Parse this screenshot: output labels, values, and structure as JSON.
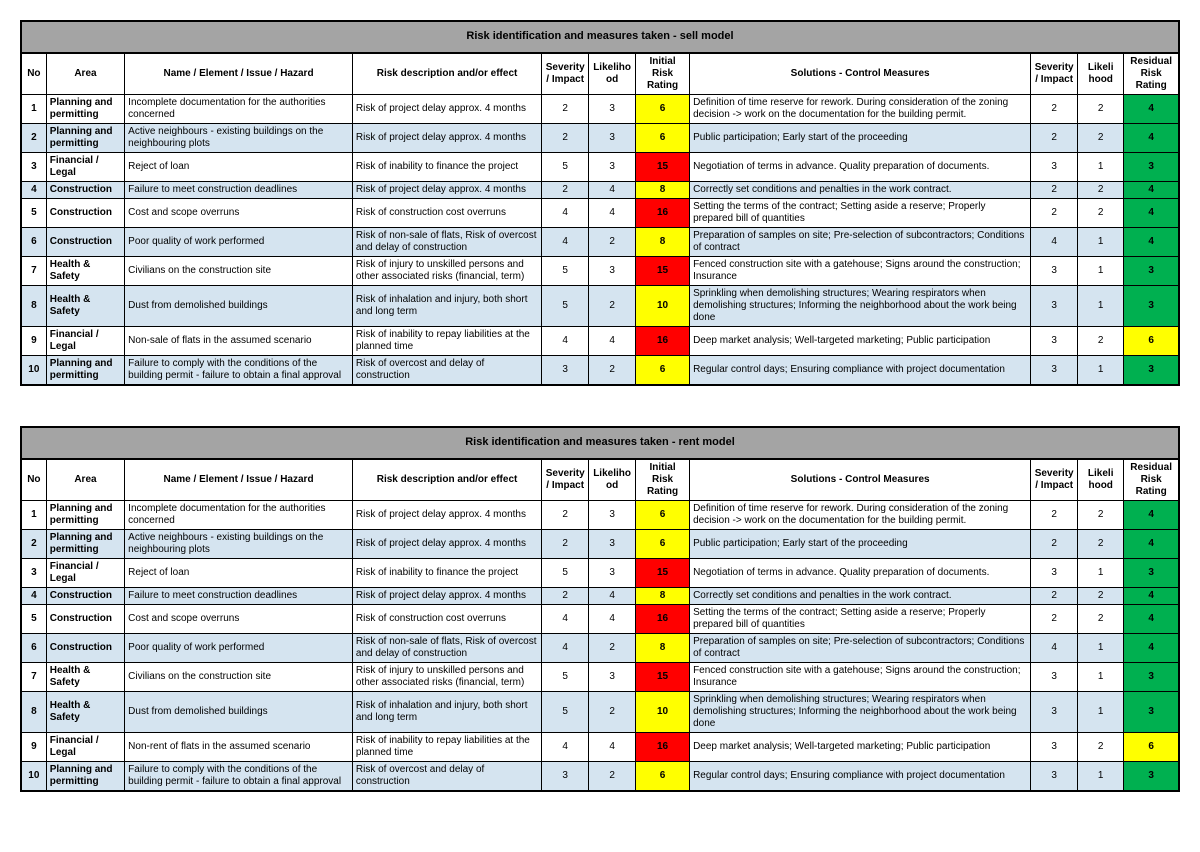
{
  "colors": {
    "header_bg": "#a4a4a4",
    "row_shade": "#d5e4f0",
    "rating_red": "#ff0000",
    "rating_yellow": "#ffff00",
    "rating_green": "#00b050",
    "border": "#000000"
  },
  "columns": [
    "No",
    "Area",
    "Name / Element / Issue / Hazard",
    "Risk\ndescription and/or effect",
    "Severity / Impact",
    "Likeliho od",
    "Initial Risk Rating",
    "Solutions - Control Measures",
    "Severity / Impact",
    "Likeli hood",
    "Residual Risk Rating"
  ],
  "tables": [
    {
      "title": "Risk identification and measures taken - sell model",
      "rows": [
        {
          "no": "1",
          "shaded": false,
          "area": "Planning and permitting",
          "name": "Incomplete documentation for the authorities concerned",
          "desc": "Risk of project delay approx. 4 months",
          "sev1": "2",
          "lik1": "3",
          "irr": "6",
          "irr_color": "yellow",
          "sol": "Definition of time reserve for rework. During consideration of the zoning decision -> work on the documentation for the building permit.",
          "sev2": "2",
          "lik2": "2",
          "rrr": "4",
          "rrr_color": "green"
        },
        {
          "no": "2",
          "shaded": true,
          "area": "Planning and permitting",
          "name": "Active neighbours - existing buildings on the neighbouring plots",
          "desc": "Risk of project delay approx. 4 months",
          "sev1": "2",
          "lik1": "3",
          "irr": "6",
          "irr_color": "yellow",
          "sol": "Public participation; Early start of the proceeding",
          "sev2": "2",
          "lik2": "2",
          "rrr": "4",
          "rrr_color": "green"
        },
        {
          "no": "3",
          "shaded": false,
          "area": "Financial / Legal",
          "name": "Reject of loan",
          "desc": "Risk of  inability to finance the project",
          "sev1": "5",
          "lik1": "3",
          "irr": "15",
          "irr_color": "red",
          "sol": "Negotiation of terms in advance. Quality preparation of documents.",
          "sev2": "3",
          "lik2": "1",
          "rrr": "3",
          "rrr_color": "green"
        },
        {
          "no": "4",
          "shaded": true,
          "area": "Construction",
          "name": "Failure to meet construction deadlines",
          "desc": "Risk of project delay approx. 4 months",
          "sev1": "2",
          "lik1": "4",
          "irr": "8",
          "irr_color": "yellow",
          "sol": "Correctly set conditions and penalties in the work contract.",
          "sev2": "2",
          "lik2": "2",
          "rrr": "4",
          "rrr_color": "green"
        },
        {
          "no": "5",
          "shaded": false,
          "area": "Construction",
          "name": "Cost and scope overruns",
          "desc": "Risk of construction cost overruns",
          "sev1": "4",
          "lik1": "4",
          "irr": "16",
          "irr_color": "red",
          "sol": "Setting the terms of the contract; Setting aside a reserve; Properly prepared bill of quantities",
          "sev2": "2",
          "lik2": "2",
          "rrr": "4",
          "rrr_color": "green"
        },
        {
          "no": "6",
          "shaded": true,
          "area": "Construction",
          "name": "Poor quality of work performed",
          "desc": "Risk of non-sale of flats, Risk of overcost and delay of construction",
          "sev1": "4",
          "lik1": "2",
          "irr": "8",
          "irr_color": "yellow",
          "sol": "Preparation of samples on site; Pre-selection of subcontractors; Conditions of contract",
          "sev2": "4",
          "lik2": "1",
          "rrr": "4",
          "rrr_color": "green"
        },
        {
          "no": "7",
          "shaded": false,
          "area": "Health & Safety",
          "name": "Civilians on the construction site",
          "desc": "Risk of injury to unskilled persons and other associated risks (financial, term)",
          "sev1": "5",
          "lik1": "3",
          "irr": "15",
          "irr_color": "red",
          "sol": "Fenced construction site with a gatehouse; Signs around the construction; Insurance",
          "sev2": "3",
          "lik2": "1",
          "rrr": "3",
          "rrr_color": "green"
        },
        {
          "no": "8",
          "shaded": true,
          "area": "Health & Safety",
          "name": "Dust from demolished buildings",
          "desc": "Risk of inhalation and injury, both short and long term",
          "sev1": "5",
          "lik1": "2",
          "irr": "10",
          "irr_color": "yellow",
          "sol": "Sprinkling when demolishing structures; Wearing respirators when demolishing structures; Informing the neighborhood about the work being done",
          "sev2": "3",
          "lik2": "1",
          "rrr": "3",
          "rrr_color": "green"
        },
        {
          "no": "9",
          "shaded": false,
          "area": "Financial / Legal",
          "name": "Non-sale of flats in the assumed scenario",
          "desc": "Risk of inability to repay liabilities at the planned time",
          "sev1": "4",
          "lik1": "4",
          "irr": "16",
          "irr_color": "red",
          "sol": "Deep market analysis; Well-targeted marketing; Public participation",
          "sev2": "3",
          "lik2": "2",
          "rrr": "6",
          "rrr_color": "yellow"
        },
        {
          "no": "10",
          "shaded": true,
          "area": "Planning and permitting",
          "name": "Failure to comply with the conditions of the building permit - failure to obtain a final approval",
          "desc": "Risk of overcost and delay of construction",
          "sev1": "3",
          "lik1": "2",
          "irr": "6",
          "irr_color": "yellow",
          "sol": "Regular control days; Ensuring compliance with project documentation",
          "sev2": "3",
          "lik2": "1",
          "rrr": "3",
          "rrr_color": "green"
        }
      ]
    },
    {
      "title": "Risk identification and measures taken - rent model",
      "rows": [
        {
          "no": "1",
          "shaded": false,
          "area": "Planning and permitting",
          "name": "Incomplete documentation for the authorities concerned",
          "desc": "Risk of project delay approx. 4 months",
          "sev1": "2",
          "lik1": "3",
          "irr": "6",
          "irr_color": "yellow",
          "sol": "Definition of time reserve for rework. During consideration of the zoning decision -> work on the documentation for the building permit.",
          "sev2": "2",
          "lik2": "2",
          "rrr": "4",
          "rrr_color": "green"
        },
        {
          "no": "2",
          "shaded": true,
          "area": "Planning and permitting",
          "name": "Active neighbours - existing buildings on the neighbouring plots",
          "desc": "Risk of project delay approx. 4 months",
          "sev1": "2",
          "lik1": "3",
          "irr": "6",
          "irr_color": "yellow",
          "sol": "Public participation; Early start of the proceeding",
          "sev2": "2",
          "lik2": "2",
          "rrr": "4",
          "rrr_color": "green"
        },
        {
          "no": "3",
          "shaded": false,
          "area": "Financial / Legal",
          "name": "Reject of loan",
          "desc": "Risk of  inability to finance the project",
          "sev1": "5",
          "lik1": "3",
          "irr": "15",
          "irr_color": "red",
          "sol": "Negotiation of terms in advance. Quality preparation of documents.",
          "sev2": "3",
          "lik2": "1",
          "rrr": "3",
          "rrr_color": "green"
        },
        {
          "no": "4",
          "shaded": true,
          "area": "Construction",
          "name": "Failure to meet construction deadlines",
          "desc": "Risk of project delay approx. 4 months",
          "sev1": "2",
          "lik1": "4",
          "irr": "8",
          "irr_color": "yellow",
          "sol": "Correctly set conditions and penalties in the work contract.",
          "sev2": "2",
          "lik2": "2",
          "rrr": "4",
          "rrr_color": "green"
        },
        {
          "no": "5",
          "shaded": false,
          "area": "Construction",
          "name": "Cost and scope overruns",
          "desc": "Risk of construction cost overruns",
          "sev1": "4",
          "lik1": "4",
          "irr": "16",
          "irr_color": "red",
          "sol": "Setting the terms of the contract; Setting aside a reserve; Properly prepared bill of quantities",
          "sev2": "2",
          "lik2": "2",
          "rrr": "4",
          "rrr_color": "green"
        },
        {
          "no": "6",
          "shaded": true,
          "area": "Construction",
          "name": "Poor quality of work performed",
          "desc": "Risk of non-sale of flats, Risk of overcost and delay of construction",
          "sev1": "4",
          "lik1": "2",
          "irr": "8",
          "irr_color": "yellow",
          "sol": "Preparation of samples on site; Pre-selection of subcontractors; Conditions of contract",
          "sev2": "4",
          "lik2": "1",
          "rrr": "4",
          "rrr_color": "green"
        },
        {
          "no": "7",
          "shaded": false,
          "area": "Health & Safety",
          "name": "Civilians on the construction site",
          "desc": "Risk of injury to unskilled persons and other associated risks (financial, term)",
          "sev1": "5",
          "lik1": "3",
          "irr": "15",
          "irr_color": "red",
          "sol": "Fenced construction site with a gatehouse; Signs around the construction; Insurance",
          "sev2": "3",
          "lik2": "1",
          "rrr": "3",
          "rrr_color": "green"
        },
        {
          "no": "8",
          "shaded": true,
          "area": "Health & Safety",
          "name": "Dust from demolished buildings",
          "desc": "Risk of inhalation and injury, both short and long term",
          "sev1": "5",
          "lik1": "2",
          "irr": "10",
          "irr_color": "yellow",
          "sol": "Sprinkling when demolishing structures; Wearing respirators when demolishing structures; Informing the neighborhood about the work being done",
          "sev2": "3",
          "lik2": "1",
          "rrr": "3",
          "rrr_color": "green"
        },
        {
          "no": "9",
          "shaded": false,
          "area": "Financial / Legal",
          "name": "Non-rent of flats in the assumed scenario",
          "desc": "Risk of inability to repay liabilities at the planned time",
          "sev1": "4",
          "lik1": "4",
          "irr": "16",
          "irr_color": "red",
          "sol": "Deep market analysis; Well-targeted marketing; Public participation",
          "sev2": "3",
          "lik2": "2",
          "rrr": "6",
          "rrr_color": "yellow"
        },
        {
          "no": "10",
          "shaded": true,
          "area": "Planning and permitting",
          "name": "Failure to comply with the conditions of the building permit - failure to obtain a final approval",
          "desc": "Risk of overcost and delay of construction",
          "sev1": "3",
          "lik1": "2",
          "irr": "6",
          "irr_color": "yellow",
          "sol": "Regular control days; Ensuring compliance with project documentation",
          "sev2": "3",
          "lik2": "1",
          "rrr": "3",
          "rrr_color": "green"
        }
      ]
    }
  ]
}
